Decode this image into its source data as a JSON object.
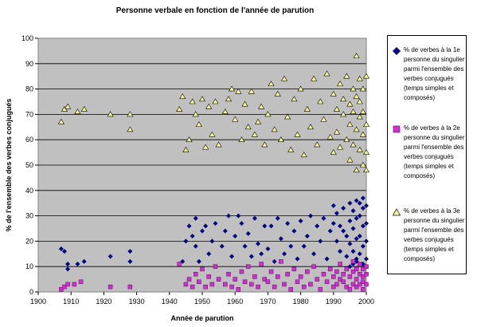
{
  "chart_data": {
    "type": "scatter",
    "title": "Personne verbale en fonction de l'année de parution",
    "xlabel": "Année de parution",
    "ylabel": "% de l'ensemble des verbes conjugués",
    "xlim": [
      1900,
      2000
    ],
    "ylim": [
      0,
      100
    ],
    "x_ticks": [
      "1900",
      "1910",
      "1920",
      "1930",
      "1940",
      "1950",
      "1960",
      "1970",
      "1980",
      "1990",
      "2000"
    ],
    "y_ticks": [
      "0",
      "10",
      "20",
      "30",
      "40",
      "50",
      "60",
      "70",
      "80",
      "90",
      "100"
    ],
    "grid": true,
    "legend_position": "right",
    "plot_background": "#c0c0c0",
    "series": [
      {
        "name": "% de verbes à la 1e personne du singulier parmi l'ensemble des verbes conjugués (temps simples et composés)",
        "color": "#000080",
        "marker": "diamond",
        "points": [
          [
            1907,
            17
          ],
          [
            1908,
            16
          ],
          [
            1909,
            11
          ],
          [
            1909,
            9
          ],
          [
            1912,
            11
          ],
          [
            1914,
            12
          ],
          [
            1922,
            14
          ],
          [
            1928,
            16
          ],
          [
            1928,
            12
          ],
          [
            1944,
            12
          ],
          [
            1945,
            20
          ],
          [
            1946,
            26
          ],
          [
            1947,
            22
          ],
          [
            1948,
            18
          ],
          [
            1948,
            29
          ],
          [
            1949,
            12
          ],
          [
            1950,
            24
          ],
          [
            1951,
            26
          ],
          [
            1952,
            15
          ],
          [
            1953,
            20
          ],
          [
            1954,
            27
          ],
          [
            1956,
            18
          ],
          [
            1957,
            24
          ],
          [
            1958,
            30
          ],
          [
            1959,
            14
          ],
          [
            1960,
            22
          ],
          [
            1961,
            30
          ],
          [
            1962,
            27
          ],
          [
            1963,
            18
          ],
          [
            1964,
            23
          ],
          [
            1965,
            14
          ],
          [
            1966,
            29
          ],
          [
            1967,
            19
          ],
          [
            1968,
            15
          ],
          [
            1969,
            26
          ],
          [
            1970,
            17
          ],
          [
            1971,
            26
          ],
          [
            1972,
            12
          ],
          [
            1973,
            29
          ],
          [
            1974,
            21
          ],
          [
            1975,
            15
          ],
          [
            1976,
            27
          ],
          [
            1977,
            18
          ],
          [
            1978,
            24
          ],
          [
            1979,
            13
          ],
          [
            1980,
            28
          ],
          [
            1981,
            18
          ],
          [
            1982,
            22
          ],
          [
            1983,
            30
          ],
          [
            1984,
            15
          ],
          [
            1985,
            26
          ],
          [
            1986,
            20
          ],
          [
            1987,
            29
          ],
          [
            1988,
            13
          ],
          [
            1989,
            24
          ],
          [
            1990,
            34
          ],
          [
            1990,
            27
          ],
          [
            1991,
            31
          ],
          [
            1991,
            20
          ],
          [
            1992,
            26
          ],
          [
            1992,
            16
          ],
          [
            1993,
            24
          ],
          [
            1993,
            33
          ],
          [
            1994,
            22
          ],
          [
            1994,
            14
          ],
          [
            1995,
            35
          ],
          [
            1995,
            28
          ],
          [
            1995,
            19
          ],
          [
            1996,
            32
          ],
          [
            1996,
            25
          ],
          [
            1996,
            16
          ],
          [
            1997,
            36
          ],
          [
            1997,
            29
          ],
          [
            1997,
            21
          ],
          [
            1997,
            13
          ],
          [
            1998,
            35
          ],
          [
            1998,
            30
          ],
          [
            1998,
            22
          ],
          [
            1998,
            15
          ],
          [
            1999,
            37
          ],
          [
            1999,
            33
          ],
          [
            1999,
            26
          ],
          [
            1999,
            18
          ],
          [
            1999,
            11
          ],
          [
            2000,
            34
          ],
          [
            2000,
            27
          ],
          [
            2000,
            20
          ],
          [
            2000,
            13
          ],
          [
            1995,
            10
          ],
          [
            1996,
            11
          ],
          [
            1997,
            12
          ]
        ]
      },
      {
        "name": "% de verbes à la 2e personne du singulier parmi l'ensemble des verbes conjugués (temps simples et composés)",
        "color": "#cc33cc",
        "marker": "square",
        "points": [
          [
            1907,
            1
          ],
          [
            1908,
            2
          ],
          [
            1909,
            3
          ],
          [
            1911,
            3
          ],
          [
            1913,
            4
          ],
          [
            1922,
            2
          ],
          [
            1928,
            2
          ],
          [
            1943,
            11
          ],
          [
            1945,
            3
          ],
          [
            1946,
            5
          ],
          [
            1947,
            2
          ],
          [
            1948,
            7
          ],
          [
            1949,
            4
          ],
          [
            1950,
            9
          ],
          [
            1951,
            2
          ],
          [
            1952,
            6
          ],
          [
            1953,
            3
          ],
          [
            1954,
            10
          ],
          [
            1955,
            5
          ],
          [
            1957,
            3
          ],
          [
            1958,
            7
          ],
          [
            1959,
            2
          ],
          [
            1960,
            5
          ],
          [
            1961,
            1
          ],
          [
            1962,
            8
          ],
          [
            1963,
            4
          ],
          [
            1964,
            10
          ],
          [
            1965,
            3
          ],
          [
            1966,
            6
          ],
          [
            1967,
            2
          ],
          [
            1968,
            11
          ],
          [
            1969,
            5
          ],
          [
            1970,
            4
          ],
          [
            1971,
            8
          ],
          [
            1972,
            2
          ],
          [
            1973,
            6
          ],
          [
            1974,
            12
          ],
          [
            1975,
            3
          ],
          [
            1976,
            7
          ],
          [
            1977,
            1
          ],
          [
            1978,
            9
          ],
          [
            1979,
            4
          ],
          [
            1980,
            6
          ],
          [
            1981,
            2
          ],
          [
            1982,
            8
          ],
          [
            1983,
            3
          ],
          [
            1984,
            10
          ],
          [
            1985,
            5
          ],
          [
            1986,
            1
          ],
          [
            1987,
            7
          ],
          [
            1988,
            4
          ],
          [
            1989,
            9
          ],
          [
            1990,
            6
          ],
          [
            1990,
            2
          ],
          [
            1991,
            8
          ],
          [
            1991,
            3
          ],
          [
            1992,
            5
          ],
          [
            1992,
            11
          ],
          [
            1993,
            4
          ],
          [
            1993,
            7
          ],
          [
            1994,
            2
          ],
          [
            1994,
            9
          ],
          [
            1995,
            6
          ],
          [
            1995,
            1
          ],
          [
            1996,
            8
          ],
          [
            1996,
            3
          ],
          [
            1996,
            12
          ],
          [
            1997,
            5
          ],
          [
            1997,
            2
          ],
          [
            1997,
            9
          ],
          [
            1998,
            7
          ],
          [
            1998,
            3
          ],
          [
            1998,
            11
          ],
          [
            1999,
            6
          ],
          [
            1999,
            1
          ],
          [
            1999,
            9
          ],
          [
            1999,
            4
          ],
          [
            2000,
            7
          ],
          [
            2000,
            3
          ],
          [
            2000,
            10
          ]
        ]
      },
      {
        "name": "% de verbes à la 3e personne du singulier parmi l'ensemble des verbes conjugués (temps simples et composés)",
        "color": "#ffff99",
        "marker": "triangle",
        "points": [
          [
            1907,
            67
          ],
          [
            1908,
            72
          ],
          [
            1909,
            73
          ],
          [
            1912,
            71
          ],
          [
            1914,
            72
          ],
          [
            1922,
            70
          ],
          [
            1928,
            70
          ],
          [
            1928,
            64
          ],
          [
            1943,
            72
          ],
          [
            1944,
            77
          ],
          [
            1945,
            56
          ],
          [
            1946,
            60
          ],
          [
            1947,
            75
          ],
          [
            1948,
            70
          ],
          [
            1949,
            66
          ],
          [
            1950,
            76
          ],
          [
            1951,
            57
          ],
          [
            1952,
            73
          ],
          [
            1953,
            62
          ],
          [
            1954,
            75
          ],
          [
            1955,
            58
          ],
          [
            1957,
            71
          ],
          [
            1958,
            76
          ],
          [
            1959,
            80
          ],
          [
            1960,
            68
          ],
          [
            1961,
            79
          ],
          [
            1962,
            60
          ],
          [
            1963,
            74
          ],
          [
            1964,
            65
          ],
          [
            1965,
            79
          ],
          [
            1966,
            62
          ],
          [
            1967,
            67
          ],
          [
            1968,
            73
          ],
          [
            1969,
            58
          ],
          [
            1970,
            70
          ],
          [
            1971,
            82
          ],
          [
            1972,
            64
          ],
          [
            1973,
            78
          ],
          [
            1974,
            60
          ],
          [
            1975,
            84
          ],
          [
            1976,
            69
          ],
          [
            1977,
            56
          ],
          [
            1978,
            76
          ],
          [
            1979,
            62
          ],
          [
            1980,
            80
          ],
          [
            1981,
            54
          ],
          [
            1982,
            72
          ],
          [
            1983,
            65
          ],
          [
            1984,
            84
          ],
          [
            1985,
            58
          ],
          [
            1986,
            75
          ],
          [
            1987,
            68
          ],
          [
            1988,
            86
          ],
          [
            1989,
            61
          ],
          [
            1990,
            78
          ],
          [
            1990,
            55
          ],
          [
            1991,
            72
          ],
          [
            1991,
            63
          ],
          [
            1992,
            82
          ],
          [
            1992,
            57
          ],
          [
            1993,
            70
          ],
          [
            1993,
            76
          ],
          [
            1994,
            60
          ],
          [
            1994,
            85
          ],
          [
            1995,
            74
          ],
          [
            1995,
            52
          ],
          [
            1995,
            66
          ],
          [
            1996,
            80
          ],
          [
            1996,
            58
          ],
          [
            1996,
            71
          ],
          [
            1997,
            93
          ],
          [
            1997,
            64
          ],
          [
            1997,
            77
          ],
          [
            1997,
            48
          ],
          [
            1998,
            84
          ],
          [
            1998,
            69
          ],
          [
            1998,
            56
          ],
          [
            1998,
            75
          ],
          [
            1999,
            80
          ],
          [
            1999,
            62
          ],
          [
            1999,
            50
          ],
          [
            1999,
            71
          ],
          [
            2000,
            85
          ],
          [
            2000,
            66
          ],
          [
            2000,
            55
          ],
          [
            2000,
            48
          ]
        ]
      }
    ]
  }
}
